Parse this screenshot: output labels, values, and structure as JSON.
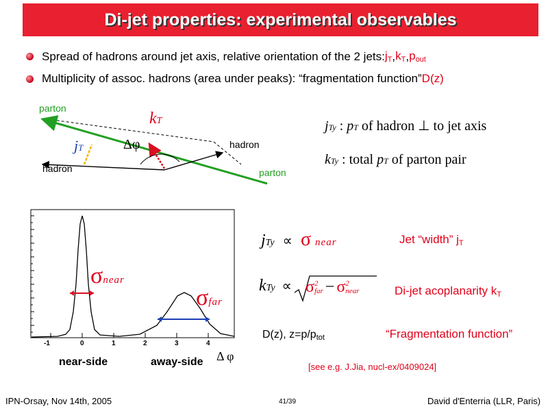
{
  "title": "Di-jet properties: experimental observables",
  "bullets": [
    {
      "text": "Spread of hadrons around jet axis, relative orientation of the 2 jets: ",
      "jT": "j",
      "jT_sub": "T",
      "kT": "k",
      "kT_sub": "T",
      "pout": "p",
      "pout_sub": "out",
      "sep": ", "
    },
    {
      "text": "Multiplicity of assoc. hadrons (area under peaks): “fragmentation function” ",
      "dz": "D(z)"
    }
  ],
  "diagram": {
    "parton_top": "parton",
    "parton_bottom": "parton",
    "hadron_left": "hadron",
    "hadron_right": "hadron",
    "kT": "k",
    "kT_sub": "T",
    "jT": "j",
    "jT_sub": "T",
    "dphi": "Δφ"
  },
  "definitions": [
    {
      "var": "j",
      "var_sub": "Ty",
      "sep": " :  ",
      "p": "p",
      "p_sub": "T",
      "rest": " of hadron  ⊥ to jet axis"
    },
    {
      "var": "k",
      "var_sub": "Ty",
      "sep": " :  ",
      "rest1": "total ",
      "p": "p",
      "p_sub": "T",
      "rest2": "  of parton pair"
    }
  ],
  "plot": {
    "x_ticks": [
      "-1",
      "0",
      "1",
      "2",
      "3",
      "4"
    ],
    "sigma_near": "σ",
    "near_label": "near",
    "sigma_far": "σ",
    "far_label": "far",
    "near_side": "near-side",
    "away_side": "away-side",
    "dphi": "Δ φ"
  },
  "relations": {
    "r1_lhs": "j",
    "r1_sub": "Ty",
    "prop": "∝",
    "r1_sigma": "σ",
    "r1_near": "near",
    "r1_desc": "Jet “width”  j",
    "r1_desc_sub": "T",
    "r2_lhs": "k",
    "r2_sub": "Ty",
    "r2_sigma": "σ",
    "r2_far": "far",
    "r2_sq": "2",
    "r2_minus": "−",
    "r2_near": "near",
    "r2_desc": "Di-jet acoplanarity k",
    "r2_desc_sub": "T",
    "r3_lhs": "D(z), z=p/p",
    "r3_sub": "tot",
    "r3_desc": "“Fragmentation function”",
    "ref": "[see e.g. J.Jia, nucl-ex/0409024]"
  },
  "footer": {
    "left": "IPN-Orsay, Nov 14th, 2005",
    "page": "41/39",
    "right": "David d'Enterria (LLR, Paris)"
  },
  "colors": {
    "title_bg": "#e8202f",
    "green_line": "#22a022",
    "red_text": "#e0001a",
    "blue_arrow": "#1a3fb5"
  }
}
